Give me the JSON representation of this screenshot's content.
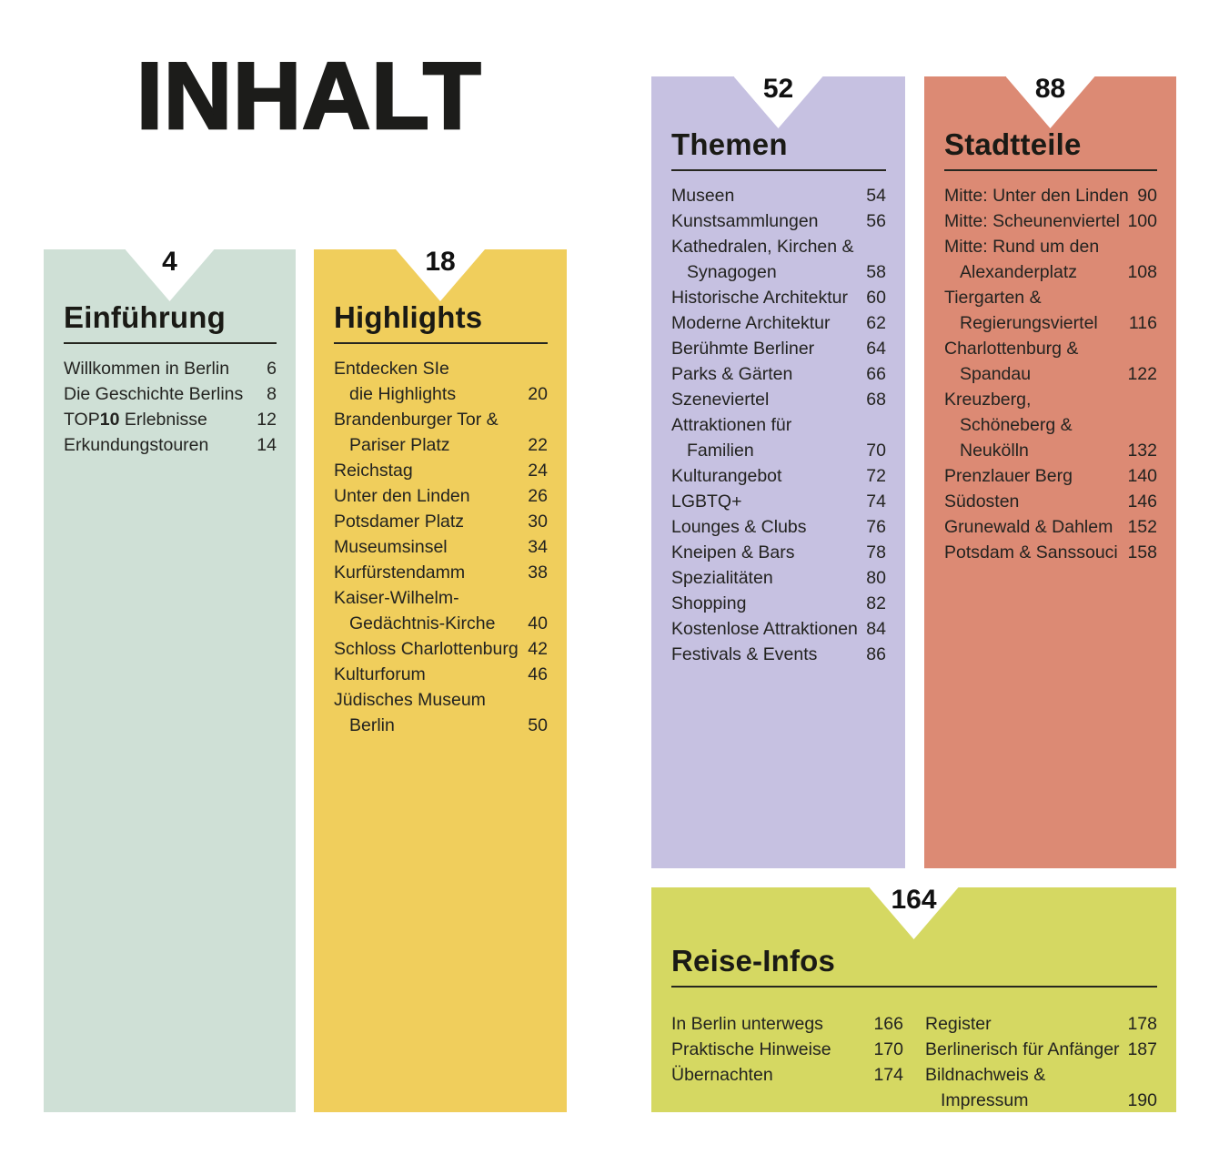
{
  "page_title": "INHALT",
  "colors": {
    "background": "#ffffff",
    "text": "#232320",
    "heading": "#1a1a15",
    "page_number": "#111111"
  },
  "sections": [
    {
      "id": "einfuehrung",
      "page_number": "4",
      "title": "Einführung",
      "bg": "#cfe0d6",
      "items": [
        {
          "label": "Willkommen in Berlin",
          "page": "6"
        },
        {
          "label": "Die Geschichte Berlins",
          "page": "8"
        },
        {
          "label_parts": {
            "pre": "TOP",
            "bold": "10",
            "post": " Erlebnisse"
          },
          "page": "12"
        },
        {
          "label": "Erkundungstouren",
          "page": "14"
        }
      ]
    },
    {
      "id": "highlights",
      "page_number": "18",
      "title": "Highlights",
      "bg": "#f0ce5c",
      "items": [
        {
          "label": "Entdecken SIe\ndie Highlights",
          "page": "20"
        },
        {
          "label": "Brandenburger Tor &\nPariser Platz",
          "page": "22"
        },
        {
          "label": "Reichstag",
          "page": "24"
        },
        {
          "label": "Unter den Linden",
          "page": "26"
        },
        {
          "label": "Potsdamer Platz",
          "page": "30"
        },
        {
          "label": "Museumsinsel",
          "page": "34"
        },
        {
          "label": "Kurfürstendamm",
          "page": "38"
        },
        {
          "label": "Kaiser-Wilhelm-\nGedächtnis-Kirche",
          "page": "40"
        },
        {
          "label": "Schloss Charlottenburg",
          "page": "42"
        },
        {
          "label": "Kulturforum",
          "page": "46"
        },
        {
          "label": "Jüdisches Museum Berlin",
          "page": "50"
        }
      ]
    },
    {
      "id": "themen",
      "page_number": "52",
      "title": "Themen",
      "bg": "#c6c1e1",
      "items": [
        {
          "label": "Museen",
          "page": "54"
        },
        {
          "label": "Kunstsammlungen",
          "page": "56"
        },
        {
          "label": "Kathedralen, Kirchen &\nSynagogen",
          "page": "58"
        },
        {
          "label": "Historische Architektur",
          "page": "60"
        },
        {
          "label": "Moderne Architektur",
          "page": "62"
        },
        {
          "label": "Berühmte Berliner",
          "page": "64"
        },
        {
          "label": "Parks & Gärten",
          "page": "66"
        },
        {
          "label": "Szeneviertel",
          "page": "68"
        },
        {
          "label": "Attraktionen für Familien",
          "page": "70"
        },
        {
          "label": "Kulturangebot",
          "page": "72"
        },
        {
          "label": "LGBTQ+",
          "page": "74"
        },
        {
          "label": "Lounges & Clubs",
          "page": "76"
        },
        {
          "label": "Kneipen & Bars",
          "page": "78"
        },
        {
          "label": "Spezialitäten",
          "page": "80"
        },
        {
          "label": "Shopping",
          "page": "82"
        },
        {
          "label": "Kostenlose Attraktionen",
          "page": "84"
        },
        {
          "label": "Festivals & Events",
          "page": "86"
        }
      ]
    },
    {
      "id": "stadtteile",
      "page_number": "88",
      "title": "Stadtteile",
      "bg": "#dc8a74",
      "items": [
        {
          "label": "Mitte: Unter den Linden",
          "page": "90"
        },
        {
          "label": "Mitte: Scheunenviertel",
          "page": "100"
        },
        {
          "label": "Mitte: Rund um den\nAlexanderplatz",
          "page": "108"
        },
        {
          "label": "Tiergarten &\nRegierungsviertel",
          "page": "116"
        },
        {
          "label": "Charlottenburg &\nSpandau",
          "page": "122"
        },
        {
          "label": "Kreuzberg, Schöneberg &\nNeukölln",
          "page": "132"
        },
        {
          "label": "Prenzlauer Berg",
          "page": "140"
        },
        {
          "label": "Südosten",
          "page": "146"
        },
        {
          "label": "Grunewald & Dahlem",
          "page": "152"
        },
        {
          "label": "Potsdam & Sanssouci",
          "page": "158"
        }
      ]
    },
    {
      "id": "reise-infos",
      "page_number": "164",
      "title": "Reise-Infos",
      "bg": "#d5d862",
      "columns": [
        [
          {
            "label": "In Berlin unterwegs",
            "page": "166"
          },
          {
            "label": "Praktische Hinweise",
            "page": "170"
          },
          {
            "label": "Übernachten",
            "page": "174"
          }
        ],
        [
          {
            "label": "Register",
            "page": "178"
          },
          {
            "label": "Berlinerisch für Anfänger",
            "page": "187"
          },
          {
            "label": "Bildnachweis & Impressum",
            "page": "190"
          }
        ]
      ]
    }
  ]
}
